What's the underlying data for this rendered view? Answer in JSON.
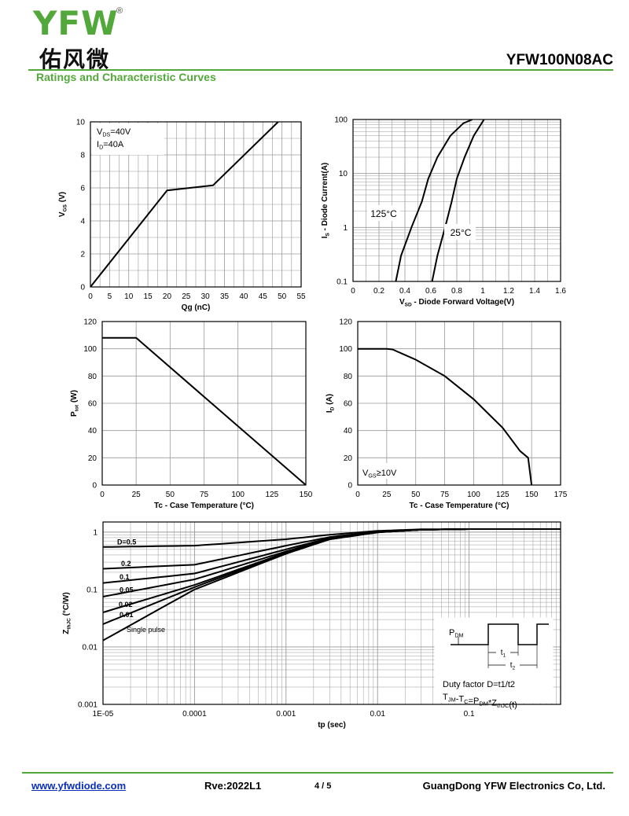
{
  "header": {
    "logo_text": "YFW",
    "logo_registered": "®",
    "logo_chinese": "佑风微",
    "part_number": "YFW100N08AC",
    "section_title": "Ratings and Characteristic Curves"
  },
  "colors": {
    "brand_green": "#52a83a",
    "link_blue": "#0a2fb8",
    "curve": "#000000",
    "grid": "#9a9a9a"
  },
  "chart_data": [
    {
      "id": "gate-charge",
      "type": "line",
      "xlabel": "Qg (nC)",
      "ylabel": "VGS (V)",
      "xlim": [
        0,
        55
      ],
      "ylim": [
        0,
        10
      ],
      "xticks": [
        0,
        5,
        10,
        15,
        20,
        25,
        30,
        35,
        40,
        45,
        50,
        55
      ],
      "yticks": [
        0,
        2,
        4,
        6,
        8,
        10
      ],
      "grid": true,
      "annotation_lines": [
        "VDS=40V",
        "ID=40A"
      ],
      "series": [
        {
          "x": [
            0,
            20,
            32,
            49
          ],
          "y": [
            0,
            5.85,
            6.15,
            10
          ]
        }
      ]
    },
    {
      "id": "diode-forward",
      "type": "line",
      "xlabel": "VSD - Diode Forward Voltage(V)",
      "ylabel": "IS - Diode Current(A)",
      "xlim": [
        0,
        1.6
      ],
      "ylim": [
        0.1,
        100
      ],
      "yscale": "log",
      "xticks": [
        0,
        0.2,
        0.4,
        0.6,
        0.8,
        1.0,
        1.2,
        1.4,
        1.6
      ],
      "yticks": [
        0.1,
        1,
        10,
        100
      ],
      "grid": true,
      "series": [
        {
          "name": "125°C",
          "x": [
            0.33,
            0.37,
            0.45,
            0.53,
            0.58,
            0.65,
            0.75,
            0.85,
            0.92
          ],
          "y": [
            0.1,
            0.3,
            1.0,
            3.0,
            8.0,
            20,
            50,
            85,
            100
          ]
        },
        {
          "name": "25°C",
          "x": [
            0.61,
            0.65,
            0.71,
            0.76,
            0.8,
            0.86,
            0.93,
            1.01
          ],
          "y": [
            0.1,
            0.3,
            1.0,
            3.0,
            8.0,
            20,
            50,
            100
          ]
        }
      ]
    },
    {
      "id": "power-derating",
      "type": "line",
      "xlabel": "Tc - Case Temperature (°C)",
      "ylabel": "Ptot (W)",
      "xlim": [
        0,
        150
      ],
      "ylim": [
        0,
        120
      ],
      "xticks": [
        0,
        25,
        50,
        75,
        100,
        125,
        150
      ],
      "yticks": [
        0,
        20,
        40,
        60,
        80,
        100,
        120
      ],
      "grid": true,
      "series": [
        {
          "x": [
            0,
            25,
            150
          ],
          "y": [
            108,
            108,
            0
          ]
        }
      ]
    },
    {
      "id": "current-derating",
      "type": "line",
      "xlabel": "Tc - Case Temperature (°C)",
      "ylabel": "ID (A)",
      "xlim": [
        0,
        175
      ],
      "ylim": [
        0,
        120
      ],
      "xticks": [
        0,
        25,
        50,
        75,
        100,
        125,
        150,
        175
      ],
      "yticks": [
        0,
        20,
        40,
        60,
        80,
        100,
        120
      ],
      "grid": true,
      "annotation": "VGS≥10V",
      "series": [
        {
          "x": [
            0,
            25,
            30,
            50,
            75,
            100,
            125,
            140,
            147,
            150
          ],
          "y": [
            100,
            100,
            99.5,
            92,
            80,
            63,
            42,
            25,
            20,
            0
          ]
        }
      ]
    },
    {
      "id": "transient-thermal",
      "type": "line",
      "xlabel": "tp (sec)",
      "ylabel": "ZthJC (°C/W)",
      "xscale": "log",
      "yscale": "log",
      "xlim": [
        1e-05,
        1
      ],
      "ylim": [
        0.001,
        1.5
      ],
      "xticks": [
        1e-05,
        0.0001,
        0.001,
        0.01,
        0.1
      ],
      "xtick_labels": [
        "1E-05",
        "0.0001",
        "0.001",
        "0.01",
        "0.1"
      ],
      "yticks": [
        0.001,
        0.01,
        0.1,
        1
      ],
      "ytick_labels": [
        "0.001",
        "0.01",
        "0.1",
        "1"
      ],
      "grid": true,
      "legend_note": [
        "Duty factor D=t1/t2",
        "TJM-TC=PDM*ZthJC(t)"
      ],
      "inset_labels": [
        "PDM",
        "t1",
        "t2"
      ],
      "series": [
        {
          "name": "D=0.5",
          "x": [
            1e-05,
            0.0001,
            0.001,
            0.003,
            0.01,
            0.03,
            0.1,
            1
          ],
          "y": [
            0.55,
            0.58,
            0.75,
            0.9,
            1.05,
            1.12,
            1.13,
            1.13
          ]
        },
        {
          "name": "0.2",
          "x": [
            1e-05,
            0.0001,
            0.001,
            0.003,
            0.01,
            0.03,
            0.1,
            1
          ],
          "y": [
            0.23,
            0.27,
            0.58,
            0.82,
            1.02,
            1.1,
            1.13,
            1.13
          ]
        },
        {
          "name": "0.1",
          "x": [
            1e-05,
            0.0001,
            0.001,
            0.003,
            0.01,
            0.03,
            0.1,
            1
          ],
          "y": [
            0.13,
            0.19,
            0.5,
            0.79,
            1.0,
            1.1,
            1.13,
            1.13
          ]
        },
        {
          "name": "0.05",
          "x": [
            1e-05,
            0.0001,
            0.001,
            0.003,
            0.01,
            0.03,
            0.1,
            1
          ],
          "y": [
            0.075,
            0.15,
            0.46,
            0.77,
            1.0,
            1.1,
            1.13,
            1.13
          ]
        },
        {
          "name": "0.02",
          "x": [
            1e-05,
            0.0001,
            0.001,
            0.003,
            0.01,
            0.03,
            0.1,
            1
          ],
          "y": [
            0.04,
            0.12,
            0.44,
            0.76,
            0.99,
            1.1,
            1.13,
            1.13
          ]
        },
        {
          "name": "0.01",
          "x": [
            1e-05,
            0.0001,
            0.001,
            0.003,
            0.01,
            0.03,
            0.1,
            1
          ],
          "y": [
            0.025,
            0.11,
            0.43,
            0.75,
            0.99,
            1.1,
            1.13,
            1.13
          ]
        },
        {
          "name": "Single pulse",
          "x": [
            1e-05,
            0.0001,
            0.001,
            0.003,
            0.01,
            0.03,
            0.1,
            1
          ],
          "y": [
            0.013,
            0.1,
            0.42,
            0.75,
            0.99,
            1.1,
            1.13,
            1.13
          ]
        }
      ]
    }
  ],
  "footer": {
    "url": "www.yfwdiode.com",
    "revision": "Rve:2022L1",
    "page": "4 / 5",
    "company": "GuangDong YFW Electronics Co, Ltd."
  }
}
